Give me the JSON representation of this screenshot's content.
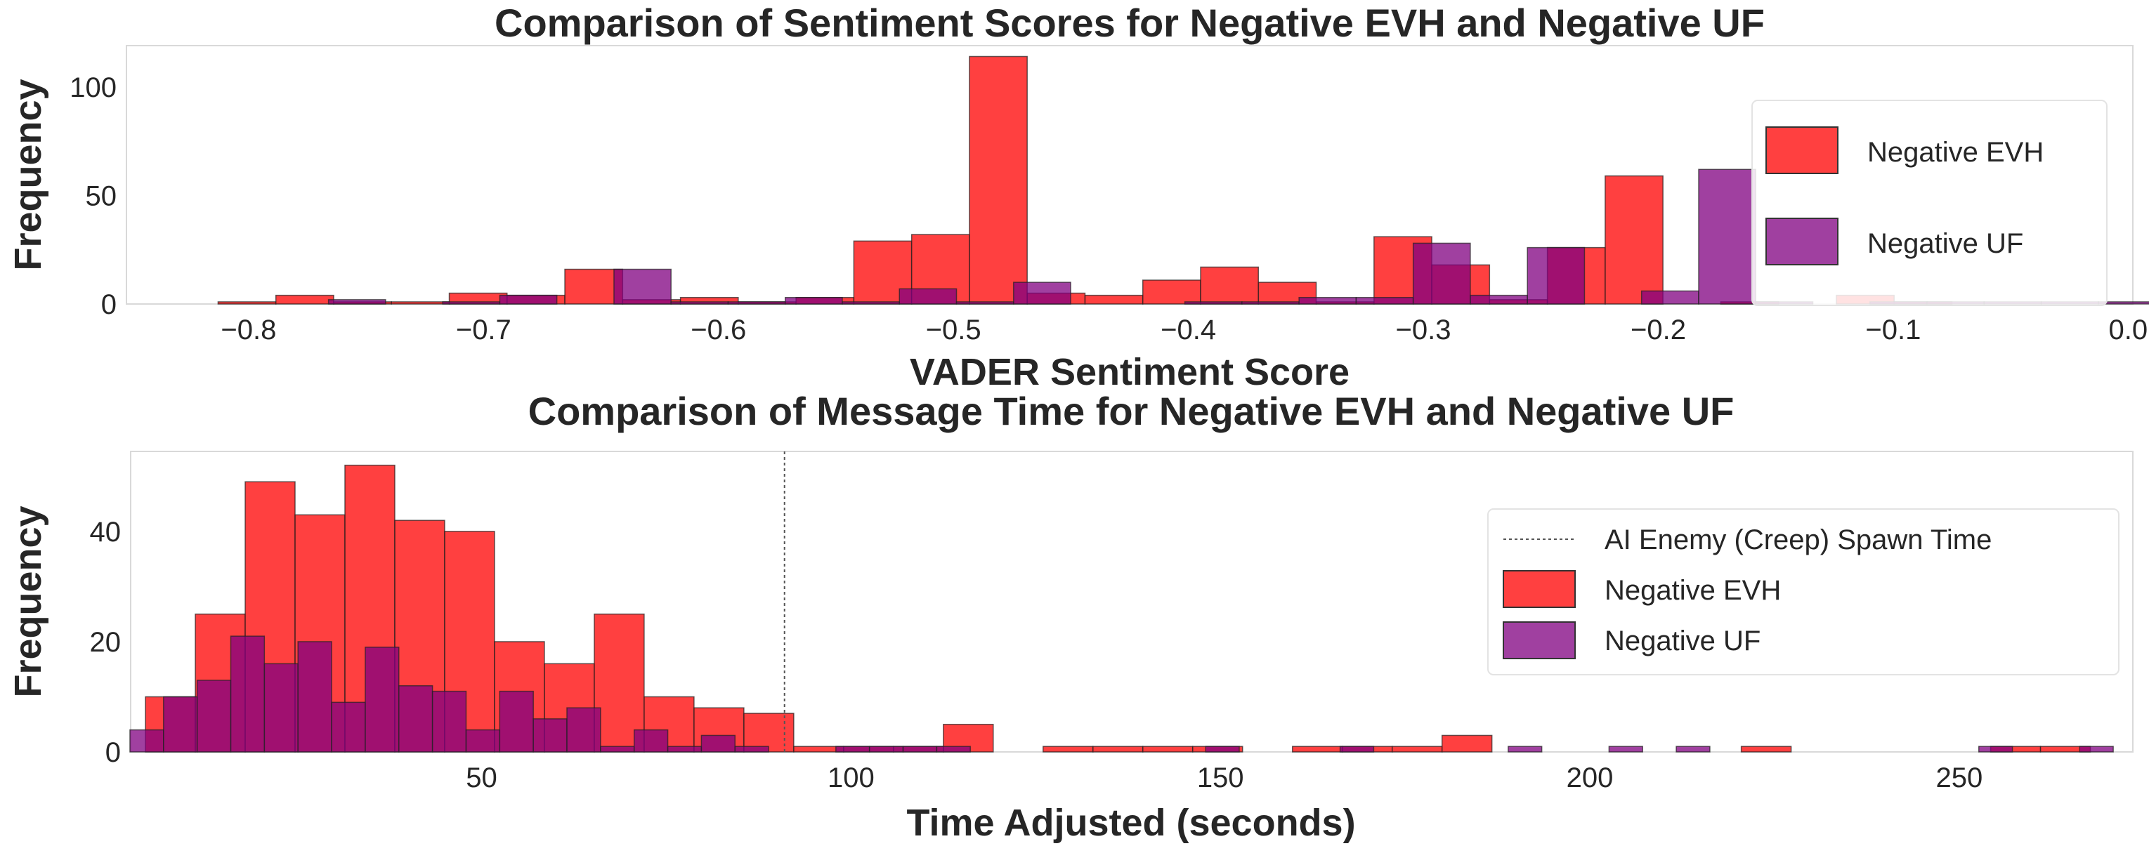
{
  "chart_data": [
    {
      "type": "bar",
      "title": "Comparison of Sentiment Scores for Negative EVH and Negative UF",
      "xlabel": "VADER Sentiment Score",
      "ylabel": "Frequency",
      "xlim": [
        -0.852,
        0.002
      ],
      "ylim": [
        0,
        119
      ],
      "xticks": [
        -0.8,
        -0.7,
        -0.6,
        -0.5,
        -0.4,
        -0.3,
        -0.2,
        -0.1,
        0.0
      ],
      "xtick_labels": [
        "−0.8",
        "−0.7",
        "−0.6",
        "−0.5",
        "−0.4",
        "−0.3",
        "−0.2",
        "−0.1",
        "0.0"
      ],
      "yticks": [
        0,
        50,
        100
      ],
      "ytick_labels": [
        "0",
        "50",
        "100"
      ],
      "grid": false,
      "legend_position": "top-right",
      "series": [
        {
          "name": "Negative EVH",
          "color": "#ff0000",
          "opacity": 0.75,
          "bin_start": -0.813,
          "bin_width": 0.0246,
          "values": [
            1,
            4,
            1,
            1,
            5,
            4,
            16,
            2,
            3,
            1,
            3,
            29,
            32,
            114,
            5,
            4,
            11,
            17,
            10,
            1,
            31,
            18,
            2,
            26,
            59,
            0,
            1,
            0,
            4,
            1
          ]
        },
        {
          "name": "Negative UF",
          "color": "#800080",
          "opacity": 0.75,
          "bin_start": -0.766,
          "bin_width": 0.0243,
          "values": [
            2,
            0,
            1,
            4,
            0,
            16,
            1,
            1,
            3,
            1,
            7,
            1,
            10,
            0,
            0,
            1,
            1,
            3,
            3,
            28,
            4,
            26,
            0,
            6,
            62,
            1,
            0,
            1,
            1,
            1,
            1,
            1
          ]
        }
      ]
    },
    {
      "type": "bar",
      "title": "Comparison of Message Time for Negative EVH and Negative UF",
      "xlabel": "Time Adjusted (seconds)",
      "ylabel": "Frequency",
      "xlim": [
        2.5,
        273.5
      ],
      "ylim": [
        0,
        54.5
      ],
      "xticks": [
        50,
        100,
        150,
        200,
        250
      ],
      "xtick_labels": [
        "50",
        "100",
        "150",
        "200",
        "250"
      ],
      "yticks": [
        0,
        20,
        40
      ],
      "ytick_labels": [
        "0",
        "20",
        "40"
      ],
      "grid": false,
      "legend_position": "top-right",
      "vline": {
        "x": 91,
        "label": "AI Enemy (Creep) Spawn Time",
        "color": "#555555"
      },
      "series": [
        {
          "name": "Negative EVH",
          "color": "#ff0000",
          "opacity": 0.75,
          "bin_start": 4.5,
          "bin_width": 6.75,
          "values": [
            10,
            25,
            49,
            43,
            52,
            42,
            40,
            20,
            16,
            25,
            10,
            8,
            7,
            1,
            1,
            1,
            5,
            0,
            1,
            1,
            1,
            1,
            0,
            1,
            1,
            1,
            3,
            0,
            0,
            0,
            0,
            0,
            1,
            0,
            0,
            0,
            0,
            1,
            1
          ]
        },
        {
          "name": "Negative UF",
          "color": "#800080",
          "opacity": 0.75,
          "bin_start": 2.4,
          "bin_width": 4.55,
          "values": [
            4,
            10,
            13,
            21,
            16,
            20,
            9,
            19,
            12,
            11,
            4,
            11,
            6,
            8,
            1,
            4,
            1,
            3,
            1,
            0,
            0,
            1,
            1,
            1,
            1,
            0,
            0,
            0,
            0,
            0,
            0,
            0,
            1,
            0,
            0,
            0,
            1,
            0,
            0,
            0,
            0,
            1,
            0,
            0,
            1,
            0,
            1,
            0,
            0,
            0,
            0,
            0,
            0,
            0,
            0,
            1,
            0,
            0,
            1
          ]
        }
      ]
    }
  ]
}
